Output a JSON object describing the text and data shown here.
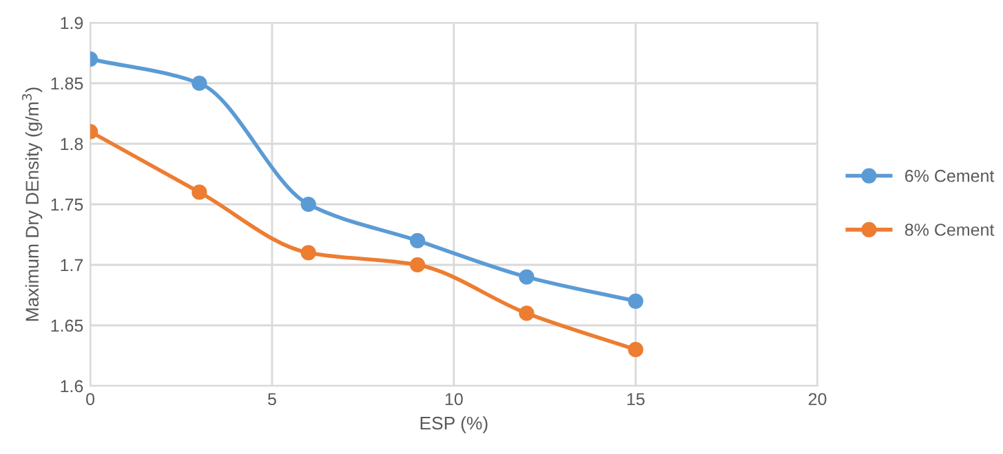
{
  "chart_data": {
    "type": "line",
    "xlabel": "ESP (%)",
    "ylabel": "Maximum Dry DEnsity (g/m$^{3}$)",
    "xlim": [
      0,
      20
    ],
    "xticks": [
      0,
      5,
      10,
      15,
      20
    ],
    "ylim": [
      1.6,
      1.9
    ],
    "yticks": [
      1.6,
      1.65,
      1.7,
      1.75,
      1.8,
      1.85,
      1.9
    ],
    "grid": true,
    "legend": "right",
    "marker": "circle",
    "line_style": "solid",
    "x": [
      0,
      3,
      6,
      9,
      12,
      15
    ],
    "series": [
      {
        "name": "6% Cement",
        "color": "#5b9bd5",
        "values": [
          1.87,
          1.85,
          1.75,
          1.72,
          1.69,
          1.67
        ]
      },
      {
        "name": "8% Cement",
        "color": "#ed7d31",
        "values": [
          1.81,
          1.76,
          1.71,
          1.7,
          1.66,
          1.63
        ]
      }
    ]
  }
}
